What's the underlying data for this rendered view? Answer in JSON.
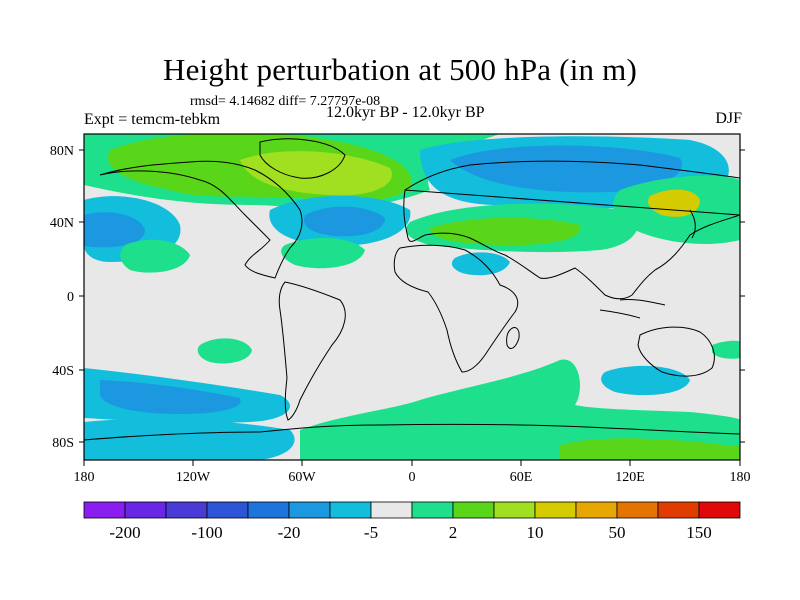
{
  "title": "Height perturbation at 500 hPa (in m)",
  "stats": "rmsd= 4.14682 diff= 7.27797e-08",
  "experiment": "Expt = temcm-tebkm",
  "period": "12.0kyr BP - 12.0kyr BP",
  "season": "DJF",
  "axes": {
    "lat_labels": [
      "80N",
      "40N",
      "0",
      "40S",
      "80S"
    ],
    "lat_values": [
      80,
      40,
      0,
      -40,
      -80
    ],
    "lon_labels": [
      "180",
      "120W",
      "60W",
      "0",
      "60E",
      "120E",
      "180"
    ],
    "lon_values": [
      -180,
      -120,
      -60,
      0,
      60,
      120,
      180
    ]
  },
  "colorbar": {
    "colors": [
      "#8a1ef0",
      "#6a26e6",
      "#4a3ad6",
      "#2b55d6",
      "#1c74dc",
      "#1b98e0",
      "#12bedc",
      "#e8e8e8",
      "#1ee08c",
      "#5ad61a",
      "#a0e020",
      "#d4cc00",
      "#e6a800",
      "#e47400",
      "#e03c00",
      "#e00808"
    ],
    "labels": [
      "-200",
      "-100",
      "-20",
      "-5",
      "2",
      "10",
      "50",
      "150"
    ]
  },
  "map_colors": {
    "neutral": "#e8e8e8",
    "neg_light": "#12bedc",
    "neg_mid": "#1b98e0",
    "neg_dark": "#1c74dc",
    "pos_light": "#1ee08c",
    "pos_mid": "#5ad61a",
    "pos_high": "#a0e020",
    "pos_top": "#d4cc00"
  }
}
